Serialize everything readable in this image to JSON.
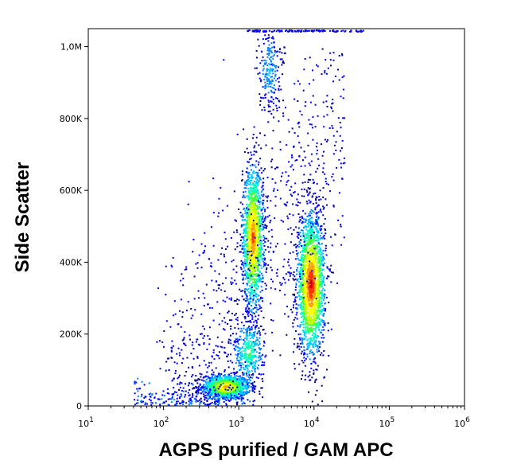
{
  "chart_data": {
    "type": "scatter",
    "style": "flow-cytometry density dot plot",
    "xlabel": "AGPS purified / GAM APC",
    "ylabel": "Side Scatter",
    "x_scale": "log",
    "xlim": [
      10,
      1000000
    ],
    "ylim": [
      0,
      1050000
    ],
    "x_ticks": [
      {
        "value": 10,
        "base": "10",
        "exp": "1"
      },
      {
        "value": 100,
        "base": "10",
        "exp": "2"
      },
      {
        "value": 1000,
        "base": "10",
        "exp": "3"
      },
      {
        "value": 10000,
        "base": "10",
        "exp": "4"
      },
      {
        "value": 100000,
        "base": "10",
        "exp": "5"
      },
      {
        "value": 1000000,
        "base": "10",
        "exp": "6"
      }
    ],
    "y_ticks": [
      {
        "value": 0,
        "label": "0"
      },
      {
        "value": 200000,
        "label": "200K"
      },
      {
        "value": 400000,
        "label": "400K"
      },
      {
        "value": 600000,
        "label": "600K"
      },
      {
        "value": 800000,
        "label": "800K"
      },
      {
        "value": 1000000,
        "label": "1,0M"
      }
    ],
    "grid": false,
    "legend": "none",
    "density_colors": [
      "#00008b",
      "#0000ff",
      "#0080ff",
      "#00c8ff",
      "#00ffc0",
      "#40ff40",
      "#c0ff00",
      "#ffff00",
      "#ffa000",
      "#ff3000",
      "#d00000"
    ],
    "populations": [
      {
        "log10x_mean": 2.82,
        "y_mean": 55000,
        "log10x_sd": 0.16,
        "y_sd": 17000,
        "count": 1200,
        "peak": "#ffa000"
      },
      {
        "log10x_mean": 3.18,
        "y_mean": 470000,
        "log10x_sd": 0.07,
        "y_sd": 100000,
        "count": 1500,
        "peak": "#ff3000"
      },
      {
        "log10x_mean": 3.95,
        "y_mean": 340000,
        "log10x_sd": 0.09,
        "y_sd": 95000,
        "count": 2000,
        "peak": "#d00000"
      },
      {
        "log10x_mean": 3.12,
        "y_mean": 150000,
        "log10x_sd": 0.1,
        "y_sd": 45000,
        "count": 350,
        "peak": "#40ff40"
      },
      {
        "log10x_mean": 3.4,
        "y_mean": 940000,
        "log10x_sd": 0.07,
        "y_sd": 60000,
        "count": 220,
        "peak": "#00c8ff"
      }
    ],
    "scattered_events": 900,
    "top_edge_events": 120
  }
}
